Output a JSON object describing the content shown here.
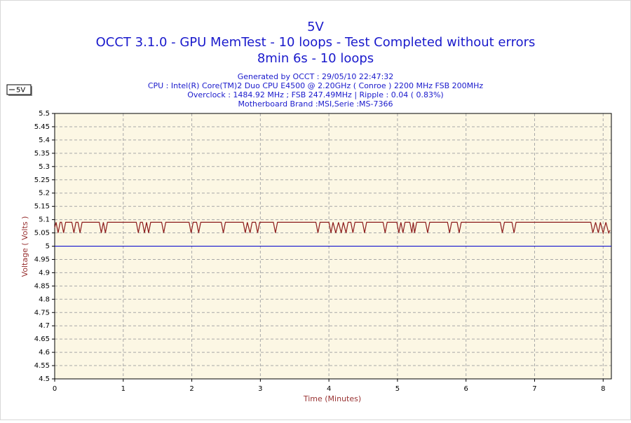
{
  "chart_data": {
    "type": "line",
    "title": "5V",
    "subtitle": [
      "OCCT 3.1.0 - GPU MemTest - 10 loops - Test Completed without errors",
      "8min 6s - 10 loops"
    ],
    "info": [
      "Generated by OCCT : 29/05/10 22:47:32",
      "CPU : Intel(R) Core(TM)2 Duo CPU E4500 @ 2.20GHz ( Conroe ) 2200 MHz FSB 200MHz",
      "Overclock : 1484.92 MHz ; FSB 247.49MHz | Ripple : 0.04 ( 0.83%)",
      "Motherboard Brand :MSI,Serie :MS-7366"
    ],
    "xlabel": "Time (Minutes)",
    "ylabel": "Voltage ( Volts )",
    "x": [
      0,
      0.02,
      0.05,
      0.08,
      0.1,
      0.13,
      0.16,
      0.25,
      0.28,
      0.31,
      0.34,
      0.37,
      0.4,
      0.65,
      0.68,
      0.71,
      0.74,
      0.77,
      1.19,
      1.22,
      1.25,
      1.28,
      1.31,
      1.34,
      1.37,
      1.4,
      1.56,
      1.59,
      1.62,
      1.96,
      1.99,
      2.02,
      2.07,
      2.1,
      2.13,
      2.43,
      2.46,
      2.49,
      2.75,
      2.78,
      2.81,
      2.85,
      2.88,
      2.93,
      2.96,
      2.99,
      3.19,
      3.22,
      3.25,
      3.81,
      3.84,
      3.87,
      4.0,
      4.03,
      4.06,
      4.1,
      4.14,
      4.18,
      4.21,
      4.25,
      4.28,
      4.32,
      4.35,
      4.38,
      4.49,
      4.52,
      4.55,
      4.79,
      4.82,
      4.85,
      4.99,
      5.02,
      5.05,
      5.08,
      5.11,
      5.18,
      5.21,
      5.23,
      5.25,
      5.28,
      5.41,
      5.44,
      5.47,
      5.73,
      5.76,
      5.79,
      5.87,
      5.9,
      5.93,
      6.5,
      6.53,
      6.56,
      6.67,
      6.7,
      6.73,
      7.82,
      7.85,
      7.89,
      7.93,
      7.96,
      8.0,
      8.04,
      8.08,
      8.1
    ],
    "series": [
      {
        "name": "5V",
        "color": "#8b1a1a",
        "values": [
          5.07,
          5.09,
          5.05,
          5.09,
          5.09,
          5.05,
          5.09,
          5.09,
          5.05,
          5.09,
          5.09,
          5.05,
          5.09,
          5.09,
          5.05,
          5.09,
          5.05,
          5.09,
          5.09,
          5.05,
          5.09,
          5.09,
          5.05,
          5.09,
          5.05,
          5.09,
          5.09,
          5.05,
          5.09,
          5.09,
          5.05,
          5.09,
          5.09,
          5.05,
          5.09,
          5.09,
          5.05,
          5.09,
          5.09,
          5.05,
          5.09,
          5.05,
          5.09,
          5.09,
          5.05,
          5.09,
          5.09,
          5.05,
          5.09,
          5.09,
          5.05,
          5.09,
          5.09,
          5.05,
          5.09,
          5.05,
          5.09,
          5.05,
          5.09,
          5.05,
          5.09,
          5.09,
          5.05,
          5.09,
          5.09,
          5.05,
          5.09,
          5.09,
          5.05,
          5.09,
          5.09,
          5.05,
          5.09,
          5.05,
          5.09,
          5.09,
          5.05,
          5.09,
          5.05,
          5.09,
          5.09,
          5.05,
          5.09,
          5.09,
          5.05,
          5.09,
          5.09,
          5.05,
          5.09,
          5.09,
          5.05,
          5.09,
          5.09,
          5.05,
          5.09,
          5.09,
          5.05,
          5.09,
          5.05,
          5.09,
          5.05,
          5.09,
          5.05,
          5.06
        ]
      }
    ],
    "reference_line": {
      "value": 5,
      "color": "#0000cc"
    },
    "xlim": [
      0,
      8.12
    ],
    "xticks": [
      0,
      1,
      2,
      3,
      4,
      5,
      6,
      7,
      8
    ],
    "ylim": [
      4.5,
      5.5
    ],
    "yticks": [
      4.5,
      4.55,
      4.6,
      4.65,
      4.7,
      4.75,
      4.8,
      4.85,
      4.9,
      4.95,
      5,
      5.05,
      5.1,
      5.15,
      5.2,
      5.25,
      5.3,
      5.35,
      5.4,
      5.45,
      5.5
    ],
    "grid": true,
    "legend": "top-left"
  }
}
